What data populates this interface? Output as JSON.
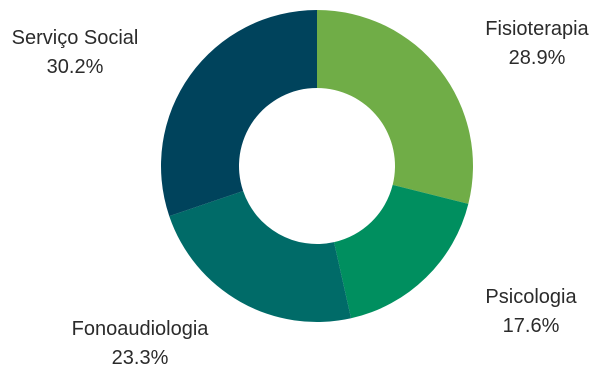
{
  "chart_data": {
    "type": "pie",
    "variant": "donut",
    "title": "",
    "slices": [
      {
        "label": "Fisioterapia",
        "value": 28.9,
        "value_label": "28.9%",
        "color": "#70AD47"
      },
      {
        "label": "Psicologia",
        "value": 17.6,
        "value_label": "17.6%",
        "color": "#008F5F"
      },
      {
        "label": "Fonoaudiologia",
        "value": 23.3,
        "value_label": "23.3%",
        "color": "#006B68"
      },
      {
        "label": "Serviço Social",
        "value": 30.2,
        "value_label": "30.2%",
        "color": "#00435C"
      }
    ],
    "start_angle": "12 o'clock",
    "direction": "clockwise",
    "legend": "none"
  }
}
